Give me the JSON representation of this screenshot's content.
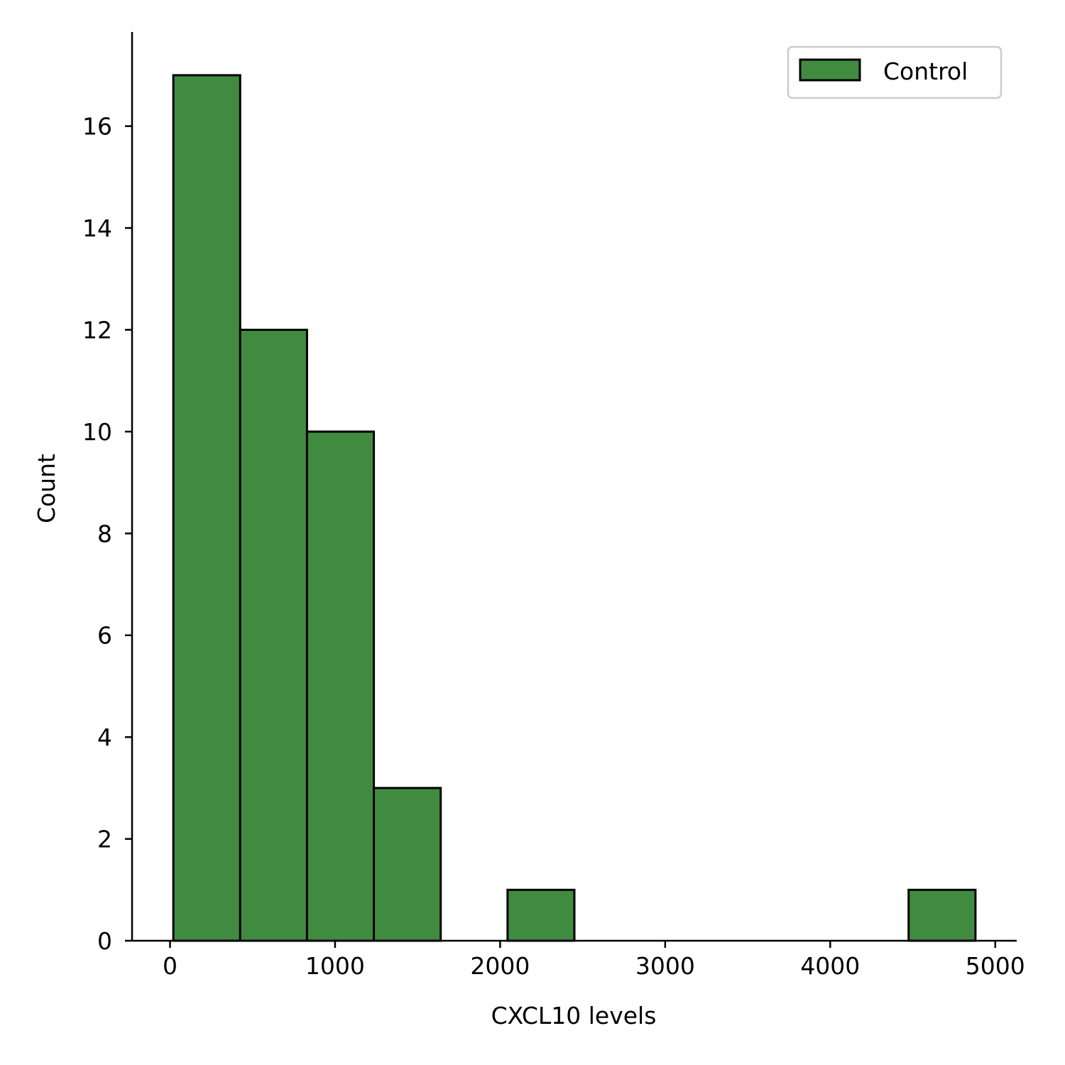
{
  "chart_data": {
    "type": "bar",
    "xlabel": "CXCL10 levels",
    "ylabel": "Count",
    "xlim": [
      -230,
      5130
    ],
    "ylim": [
      0,
      17.85
    ],
    "x_ticks": [
      0,
      1000,
      2000,
      3000,
      4000,
      5000
    ],
    "y_ticks": [
      0,
      2,
      4,
      6,
      8,
      10,
      12,
      14,
      16
    ],
    "grid": false,
    "legend": {
      "placement": "top-right",
      "entries": [
        "Control"
      ]
    },
    "colors": {
      "bar_fill": "#418b41",
      "bar_edge": "#000000"
    },
    "series": [
      {
        "name": "Control",
        "bins": [
          {
            "x0": 20,
            "x1": 425,
            "count": 17
          },
          {
            "x0": 425,
            "x1": 830,
            "count": 12
          },
          {
            "x0": 830,
            "x1": 1235,
            "count": 10
          },
          {
            "x0": 1235,
            "x1": 1640,
            "count": 3
          },
          {
            "x0": 1640,
            "x1": 2045,
            "count": 0
          },
          {
            "x0": 2045,
            "x1": 2450,
            "count": 1
          },
          {
            "x0": 2450,
            "x1": 2855,
            "count": 0
          },
          {
            "x0": 2855,
            "x1": 3260,
            "count": 0
          },
          {
            "x0": 3260,
            "x1": 3665,
            "count": 0
          },
          {
            "x0": 3665,
            "x1": 4070,
            "count": 0
          },
          {
            "x0": 4070,
            "x1": 4475,
            "count": 0
          },
          {
            "x0": 4475,
            "x1": 4880,
            "count": 1
          }
        ]
      }
    ]
  }
}
